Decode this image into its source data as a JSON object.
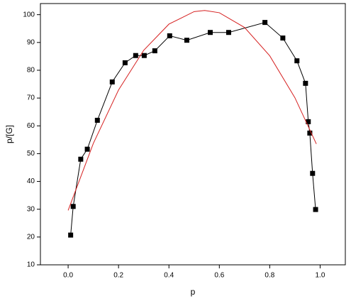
{
  "chart_data": {
    "type": "line",
    "x_label": "p",
    "y_label": "p/[G]",
    "xlim": [
      -0.11,
      1.1
    ],
    "ylim": [
      10,
      104
    ],
    "xticks": [
      {
        "value": 0,
        "label": "0.0"
      },
      0.2,
      0.4,
      0.6,
      0.8,
      {
        "value": 1,
        "label": "1.0"
      }
    ],
    "yticks": [
      10,
      20,
      30,
      40,
      50,
      60,
      70,
      80,
      90,
      100
    ],
    "series": [
      {
        "color": "#000000",
        "marker": "square",
        "x": [
          0.01,
          0.02,
          0.05,
          0.076,
          0.116,
          0.175,
          0.226,
          0.268,
          0.302,
          0.344,
          0.403,
          0.471,
          0.564,
          0.637,
          0.781,
          0.852,
          0.908,
          0.942,
          0.953,
          0.959,
          0.97,
          0.982
        ],
        "values": [
          20.7,
          31,
          48,
          51.6,
          62,
          75.8,
          82.7,
          85.3,
          85.3,
          87,
          92.4,
          90.8,
          93.6,
          93.6,
          97.2,
          91.6,
          83.4,
          75.3,
          61.5,
          57.4,
          42.9,
          29.9
        ]
      },
      {
        "color": "#d62020",
        "x": [
          0,
          0.1,
          0.2,
          0.3,
          0.4,
          0.5,
          0.542,
          0.6,
          0.7,
          0.8,
          0.9,
          0.985
        ],
        "values": [
          29.6,
          53.7,
          72.9,
          87.2,
          96.6,
          101.1,
          101.5,
          100.7,
          95.4,
          85.2,
          70.1,
          53.5
        ]
      }
    ]
  }
}
